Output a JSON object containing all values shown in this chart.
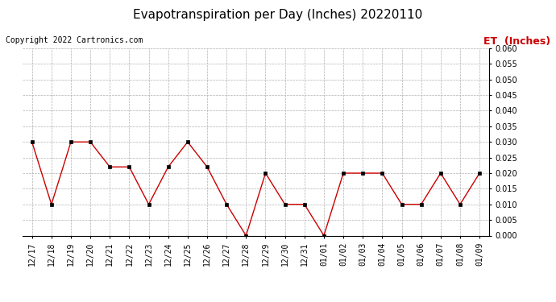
{
  "title": "Evapotranspiration per Day (Inches) 20220110",
  "copyright": "Copyright 2022 Cartronics.com",
  "legend_label": "ET  (Inches)",
  "x_labels": [
    "12/17",
    "12/18",
    "12/19",
    "12/20",
    "12/21",
    "12/22",
    "12/23",
    "12/24",
    "12/25",
    "12/26",
    "12/27",
    "12/28",
    "12/29",
    "12/30",
    "12/31",
    "01/01",
    "01/02",
    "01/03",
    "01/04",
    "01/05",
    "01/06",
    "01/07",
    "01/08",
    "01/09"
  ],
  "y_values": [
    0.03,
    0.01,
    0.03,
    0.03,
    0.022,
    0.022,
    0.01,
    0.022,
    0.03,
    0.022,
    0.01,
    0.0,
    0.02,
    0.01,
    0.01,
    0.0,
    0.02,
    0.02,
    0.02,
    0.01,
    0.01,
    0.02,
    0.01,
    0.02
  ],
  "line_color": "#cc0000",
  "marker_color": "#000000",
  "ylim": [
    0.0,
    0.06
  ],
  "yticks": [
    0.0,
    0.005,
    0.01,
    0.015,
    0.02,
    0.025,
    0.03,
    0.035,
    0.04,
    0.045,
    0.05,
    0.055,
    0.06
  ],
  "background_color": "#ffffff",
  "grid_color": "#b0b0b0",
  "title_fontsize": 11,
  "copyright_fontsize": 7,
  "legend_fontsize": 9,
  "tick_fontsize": 7
}
